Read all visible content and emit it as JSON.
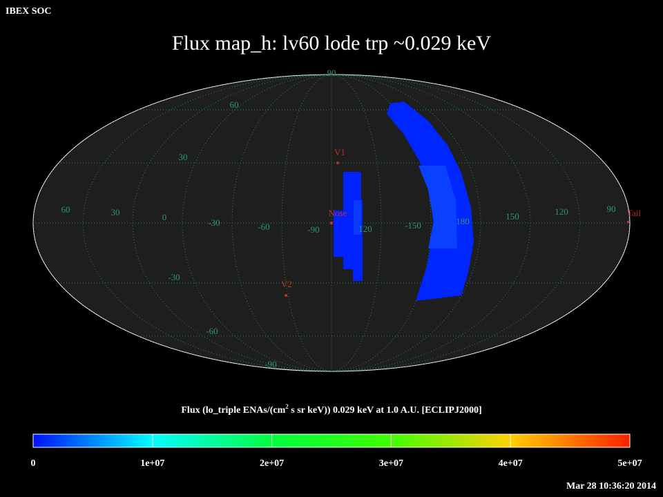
{
  "header": {
    "org": "IBEX SOC",
    "title": "Flux   map_h: lv60 lode trp ~0.029 keV"
  },
  "map": {
    "latitude_labels": [
      "90",
      "60",
      "30",
      "-30",
      "-60",
      "-90"
    ],
    "longitude_labels": [
      "60",
      "30",
      "0",
      "-30",
      "-60",
      "-90",
      "120",
      "-150",
      "180",
      "150",
      "120",
      "90"
    ],
    "markers": [
      "V1",
      "Nose",
      "V2",
      "Tail"
    ]
  },
  "colorbar": {
    "caption": "Flux (lo_triple ENAs/(cm",
    "caption_sup": "2",
    "caption_rest": " s sr keV))  0.029 keV at 1.0 A.U. [ECLIPJ2000]",
    "ticks": [
      "0",
      "1e+07",
      "2e+07",
      "3e+07",
      "4e+07",
      "5e+07"
    ]
  },
  "footer": {
    "timestamp": "Mar 28 10:36:20 2014"
  }
}
